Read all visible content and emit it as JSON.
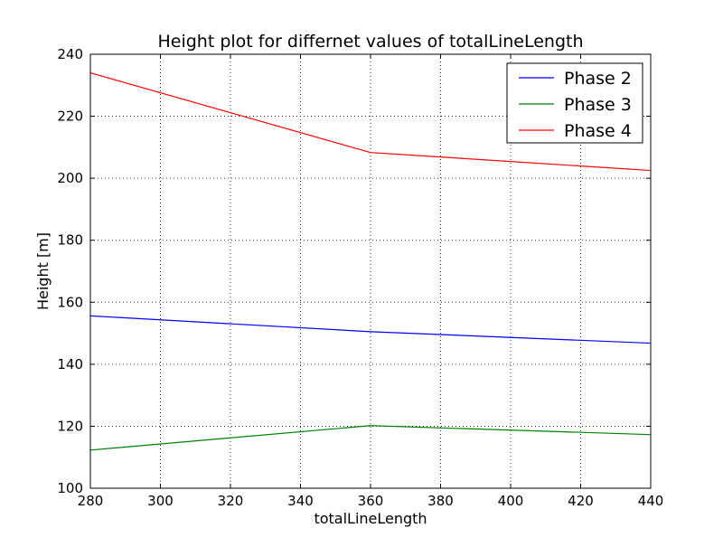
{
  "chart_data": {
    "type": "line",
    "title": "Height plot for differnet values of totalLineLength",
    "xlabel": "totalLineLength",
    "ylabel": "Height [m]",
    "x": [
      280,
      360,
      440
    ],
    "xlim": [
      280,
      440
    ],
    "ylim": [
      100,
      240
    ],
    "xticks": [
      280,
      300,
      320,
      340,
      360,
      380,
      400,
      420,
      440
    ],
    "yticks": [
      100,
      120,
      140,
      160,
      180,
      200,
      220,
      240
    ],
    "grid": true,
    "legend_position": "top-right",
    "series": [
      {
        "name": "Phase 2",
        "color": "#0000ff",
        "values": [
          155.6,
          150.5,
          146.8
        ]
      },
      {
        "name": "Phase 3",
        "color": "#008000",
        "values": [
          112.3,
          120.2,
          117.3
        ]
      },
      {
        "name": "Phase 4",
        "color": "#ff0000",
        "values": [
          234.0,
          208.3,
          202.5
        ]
      }
    ]
  }
}
